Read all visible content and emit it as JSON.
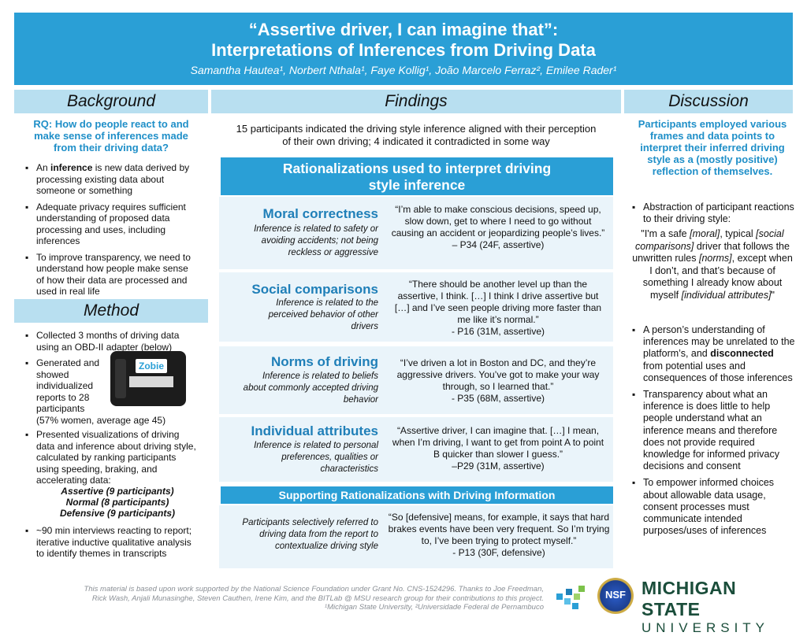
{
  "header": {
    "title_line1": "“Assertive driver, I can imagine that”:",
    "title_line2": "Interpretations of Inferences from Driving Data",
    "authors": "Samantha Hautea¹, Norbert Nthala¹, Faye Kollig¹, João Marcelo Ferraz², Emilee Rader¹"
  },
  "background": {
    "heading": "Background",
    "rq": "RQ: How do people react to and make sense of inferences made from their driving data?",
    "bullets": [
      {
        "pre": "An ",
        "bold": "inference",
        "post": " is new data derived by processing existing data about someone or something"
      },
      {
        "text": "Adequate privacy requires sufficient understanding of proposed data processing and uses, including inferences"
      },
      {
        "text": "To improve transparency, we need to understand how people make sense of how their data are processed and used in real life"
      }
    ]
  },
  "method": {
    "heading": "Method",
    "b1": "Collected 3 months of driving data using an OBD-II adapter (below)",
    "b2": "Generated and showed individualized reports to 28 participants",
    "b2_tail": "(57% women, average age 45)",
    "device_label": "Zobie",
    "b3": "Presented visualizations of driving data and inference about driving style, calculated by ranking participants using speeding, braking, and accelerating data:",
    "styles": [
      "Assertive (9 participants)",
      "Normal (8 participants)",
      "Defensive (9 participants)"
    ],
    "b4": "~90 min interviews reacting to report; iterative inductive qualitative analysis to identify themes in transcripts"
  },
  "findings": {
    "heading": "Findings",
    "summary": "15 participants indicated the driving style inference aligned with their perception of their own driving; 4 indicated it contradicted in some way",
    "rationalizations_title": "Rationalizations used to interpret driving style inference",
    "rows": [
      {
        "title": "Moral correctness",
        "desc": "Inference is related to safety or avoiding accidents; not being reckless or aggressive",
        "quote": "“I’m able to make conscious decisions, speed up, slow down, get to where I need to go without causing an accident or jeopardizing people’s lives.”",
        "attr": "– P34 (24F, assertive)"
      },
      {
        "title": "Social comparisons",
        "desc": "Inference is related to the perceived behavior of other drivers",
        "quote": "“There should be another level up than the assertive, I think. […] I think I drive assertive but […] and I’ve seen people driving more faster than me like it’s normal.”",
        "attr": "- P16 (31M, assertive)"
      },
      {
        "title": "Norms of driving",
        "desc": "Inference is related to beliefs about commonly accepted driving behavior",
        "quote": "“I’ve driven a lot in Boston and DC, and they’re aggressive drivers. You’ve got to make your way through, so I learned that.”",
        "attr": "- P35 (68M, assertive)"
      },
      {
        "title": "Individual attributes",
        "desc": "Inference is related to personal preferences, qualities or characteristics",
        "quote": "“Assertive driver, I can imagine that. […] I mean, when I’m driving, I want to get from point A to point B quicker than slower I guess.”",
        "attr": "–P29 (31M, assertive)"
      }
    ],
    "supporting_title": "Supporting Rationalizations with Driving Information",
    "supporting_desc": "Participants selectively referred to driving data from the report to contextualize driving style",
    "supporting_quote": "“So [defensive] means, for example, it says that hard brakes events have been very frequent. So I’m trying to, I’ve been trying to protect myself.”",
    "supporting_attr": "- P13 (30F, defensive)"
  },
  "discussion": {
    "heading": "Discussion",
    "lead": "Participants employed various frames and data points to interpret their inferred driving style as a (mostly positive) reflection of themselves.",
    "b1": "Abstraction of participant reactions to their driving style:",
    "q_a": "\"I'm a safe ",
    "q_b": "[moral]",
    "q_c": ", typical ",
    "q_d": "[social comparisons]",
    "q_e": " driver that follows the unwritten rules ",
    "q_f": "[norms]",
    "q_g": ", except when I don’t, and that’s because of something I already know about myself ",
    "q_h": "[individual attributes]",
    "q_i": "\"",
    "b2_pre": "A person’s understanding of inferences may be unrelated to the platform’s, and ",
    "b2_bold": "disconnected",
    "b2_post": " from potential uses and consequences of those inferences",
    "b3": "Transparency about what an inference is does little to help people understand what an inference means and therefore does not provide required knowledge for informed privacy decisions and consent",
    "b4": "To empower informed choices about allowable data usage, consent processes must communicate intended purposes/uses of inferences"
  },
  "footer": {
    "line1": "This material is based upon work supported by the National Science Foundation under Grant No. CNS-1524296. Thanks to Joe Freedman,",
    "line2": "Rick Wash, Anjali Munasinghe, Steven Cauthen, Irene Kim, and the BITLab @ MSU research group for their contributions to this project.",
    "line3": "¹Michigan State University, ²Universidade Federal de Pernambuco",
    "nsf": "NSF",
    "msu1": "MICHIGAN STATE",
    "msu2": "UNIVERSITY"
  }
}
